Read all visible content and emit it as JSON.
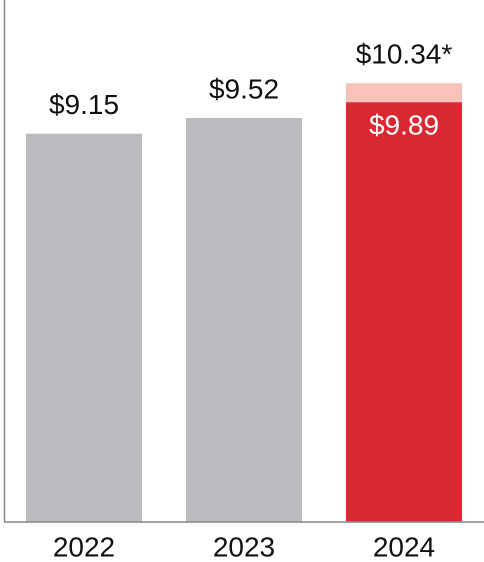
{
  "chart_data": {
    "type": "bar",
    "overlap": true,
    "categories": [
      "2022",
      "2023",
      "2024"
    ],
    "series": [
      {
        "color": "#f8c1ba",
        "values": [
          null,
          null,
          10.34
        ],
        "value_labels": [
          null,
          null,
          "$10.34*"
        ]
      },
      {
        "colors": [
          "#bbbcbf",
          "#bbbcbf",
          "#da2832"
        ],
        "values": [
          9.15,
          9.52,
          9.89
        ],
        "value_labels": [
          "$9.15",
          "$9.52",
          "$9.89"
        ]
      }
    ],
    "ylim": [
      0,
      12.3
    ]
  }
}
